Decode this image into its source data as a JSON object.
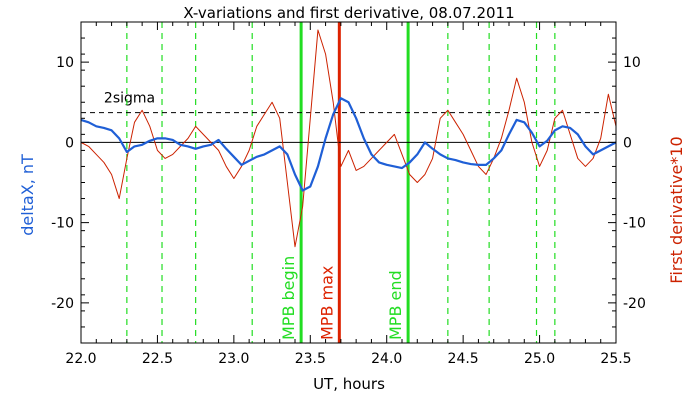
{
  "chart_data": {
    "type": "line",
    "title": "X-variations and first derivative, 08.07.2011",
    "xlabel": "UT, hours",
    "ylabel_left": "deltaX, nT",
    "ylabel_right": "First derivative*10",
    "xlim": [
      22.0,
      25.5
    ],
    "ylim": [
      -25,
      15
    ],
    "xticks": [
      22.0,
      22.5,
      23.0,
      23.5,
      24.0,
      24.5,
      25.0,
      25.5
    ],
    "xtick_labels": [
      "22.0",
      "22.5",
      "23.0",
      "23.5",
      "24.0",
      "24.5",
      "25.0",
      "25.5"
    ],
    "yticks": [
      -20,
      -10,
      0,
      10
    ],
    "ytick_labels": [
      "-20",
      "-10",
      "0",
      "10"
    ],
    "sigma": {
      "label": "2sigma",
      "value": 3.7
    },
    "colors": {
      "deltaX": "#1f5fd6",
      "derivative": "#cc2200",
      "green_lines": "#22dd22",
      "max_line": "#dd2200"
    },
    "dashed_green_x": [
      22.3,
      22.53,
      22.75,
      23.12,
      24.4,
      24.67,
      24.98,
      25.1
    ],
    "markers": [
      {
        "label": "MPB begin",
        "x": 23.44,
        "color": "#22dd22"
      },
      {
        "label": "MPB max",
        "x": 23.69,
        "color": "#dd2200"
      },
      {
        "label": "MPB end",
        "x": 24.14,
        "color": "#22dd22"
      }
    ],
    "series": [
      {
        "name": "",
        "axis": "left",
        "color": "#1f5fd6",
        "x": [
          22.0,
          22.05,
          22.1,
          22.15,
          22.2,
          22.25,
          22.3,
          22.35,
          22.4,
          22.45,
          22.5,
          22.55,
          22.6,
          22.65,
          22.7,
          22.75,
          22.8,
          22.85,
          22.9,
          22.95,
          23.0,
          23.05,
          23.1,
          23.15,
          23.2,
          23.25,
          23.3,
          23.35,
          23.4,
          23.45,
          23.5,
          23.55,
          23.6,
          23.65,
          23.7,
          23.75,
          23.8,
          23.85,
          23.9,
          23.95,
          24.0,
          24.05,
          24.1,
          24.15,
          24.2,
          24.25,
          24.3,
          24.35,
          24.4,
          24.45,
          24.5,
          24.55,
          24.6,
          24.65,
          24.7,
          24.75,
          24.8,
          24.85,
          24.9,
          24.95,
          25.0,
          25.05,
          25.1,
          25.15,
          25.2,
          25.25,
          25.3,
          25.35,
          25.4,
          25.45,
          25.5
        ],
        "y": [
          2.8,
          2.5,
          2.0,
          1.8,
          1.5,
          0.5,
          -1.2,
          -0.5,
          -0.3,
          0.2,
          0.5,
          0.5,
          0.3,
          -0.3,
          -0.5,
          -0.8,
          -0.5,
          -0.3,
          0.3,
          -0.8,
          -1.8,
          -2.8,
          -2.3,
          -1.8,
          -1.5,
          -1.0,
          -0.5,
          -1.5,
          -4.0,
          -6.0,
          -5.5,
          -3.0,
          0.5,
          3.5,
          5.5,
          5.0,
          3.0,
          0.5,
          -1.5,
          -2.5,
          -2.8,
          -3.0,
          -3.2,
          -2.5,
          -1.5,
          0.0,
          -0.8,
          -1.5,
          -2.0,
          -2.2,
          -2.5,
          -2.7,
          -2.8,
          -2.8,
          -2.0,
          -1.0,
          1.0,
          2.8,
          2.5,
          1.2,
          -0.5,
          0.2,
          1.5,
          2.0,
          1.8,
          1.0,
          -0.5,
          -1.5,
          -1.0,
          -0.5,
          0.0
        ]
      },
      {
        "name": "",
        "axis": "right",
        "color": "#cc2200",
        "x": [
          22.0,
          22.05,
          22.1,
          22.15,
          22.2,
          22.25,
          22.3,
          22.35,
          22.4,
          22.45,
          22.5,
          22.55,
          22.6,
          22.65,
          22.7,
          22.75,
          22.8,
          22.85,
          22.9,
          22.95,
          23.0,
          23.05,
          23.1,
          23.15,
          23.2,
          23.25,
          23.3,
          23.35,
          23.4,
          23.45,
          23.5,
          23.55,
          23.6,
          23.65,
          23.7,
          23.75,
          23.8,
          23.85,
          23.9,
          23.95,
          24.0,
          24.05,
          24.1,
          24.15,
          24.2,
          24.25,
          24.3,
          24.35,
          24.4,
          24.45,
          24.5,
          24.55,
          24.6,
          24.65,
          24.7,
          24.75,
          24.8,
          24.85,
          24.9,
          24.95,
          25.0,
          25.05,
          25.1,
          25.15,
          25.2,
          25.25,
          25.3,
          25.35,
          25.4,
          25.45,
          25.5
        ],
        "y": [
          0.0,
          -0.5,
          -1.5,
          -2.5,
          -4.0,
          -7.0,
          -2.0,
          2.5,
          4.0,
          2.0,
          -1.0,
          -2.0,
          -1.5,
          -0.5,
          0.5,
          2.0,
          1.0,
          0.0,
          -1.0,
          -3.0,
          -4.5,
          -3.0,
          -1.0,
          2.0,
          3.5,
          5.0,
          3.0,
          -5.0,
          -13.0,
          -8.0,
          3.0,
          14.0,
          11.0,
          5.0,
          -3.0,
          -1.0,
          -3.5,
          -3.0,
          -2.0,
          -1.0,
          0.0,
          1.0,
          -1.5,
          -4.0,
          -5.0,
          -4.0,
          -2.0,
          3.0,
          4.0,
          2.5,
          1.0,
          -1.0,
          -3.0,
          -4.0,
          -2.0,
          0.5,
          4.0,
          8.0,
          5.0,
          0.0,
          -3.0,
          -1.0,
          3.0,
          4.0,
          1.0,
          -2.0,
          -3.0,
          -2.0,
          0.5,
          6.0,
          2.0
        ]
      }
    ]
  }
}
